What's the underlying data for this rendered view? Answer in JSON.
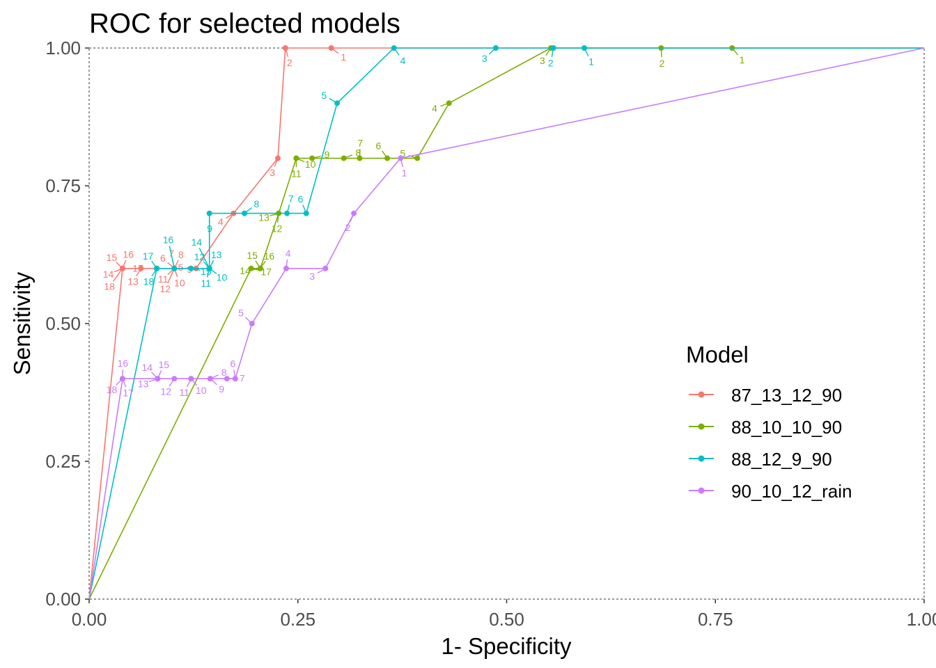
{
  "chart_data": {
    "type": "line",
    "title": "ROC for selected models",
    "xlabel": "1- Specificity",
    "ylabel": "Sensitivity",
    "xlim": [
      0,
      1
    ],
    "ylim": [
      0,
      1
    ],
    "x_ticks": [
      "0.00",
      "0.25",
      "0.50",
      "0.75",
      "1.00"
    ],
    "y_ticks": [
      "0.00",
      "0.25",
      "0.50",
      "0.75",
      "1.00"
    ],
    "grid": false,
    "legend": {
      "title": "Model",
      "position": "right"
    },
    "series": [
      {
        "name": "87_13_12_90",
        "color": "#F8766D",
        "points": [
          {
            "x": 1.0,
            "y": 1.0,
            "label": ""
          },
          {
            "x": 0.29,
            "y": 1.0,
            "label": "1"
          },
          {
            "x": 0.235,
            "y": 1.0,
            "label": "2"
          },
          {
            "x": 0.226,
            "y": 0.8,
            "label": "3"
          },
          {
            "x": 0.173,
            "y": 0.7,
            "label": "4"
          },
          {
            "x": 0.128,
            "y": 0.6,
            "label": "5"
          },
          {
            "x": 0.102,
            "y": 0.6,
            "label": "6"
          },
          {
            "x": 0.102,
            "y": 0.6,
            "label": "7"
          },
          {
            "x": 0.102,
            "y": 0.6,
            "label": "8"
          },
          {
            "x": 0.102,
            "y": 0.6,
            "label": "9"
          },
          {
            "x": 0.102,
            "y": 0.6,
            "label": "10"
          },
          {
            "x": 0.102,
            "y": 0.6,
            "label": "11"
          },
          {
            "x": 0.102,
            "y": 0.6,
            "label": "12"
          },
          {
            "x": 0.062,
            "y": 0.6,
            "label": "13"
          },
          {
            "x": 0.04,
            "y": 0.6,
            "label": "14"
          },
          {
            "x": 0.04,
            "y": 0.6,
            "label": "15"
          },
          {
            "x": 0.04,
            "y": 0.6,
            "label": "16"
          },
          {
            "x": 0.04,
            "y": 0.6,
            "label": "17"
          },
          {
            "x": 0.04,
            "y": 0.6,
            "label": "18"
          },
          {
            "x": 0.0,
            "y": 0.0,
            "label": ""
          }
        ]
      },
      {
        "name": "88_10_10_90",
        "color": "#7CAE00",
        "points": [
          {
            "x": 1.0,
            "y": 1.0,
            "label": ""
          },
          {
            "x": 0.77,
            "y": 1.0,
            "label": "1"
          },
          {
            "x": 0.685,
            "y": 1.0,
            "label": "2"
          },
          {
            "x": 0.553,
            "y": 1.0,
            "label": "3"
          },
          {
            "x": 0.431,
            "y": 0.9,
            "label": "4"
          },
          {
            "x": 0.393,
            "y": 0.8,
            "label": "5"
          },
          {
            "x": 0.357,
            "y": 0.8,
            "label": "6"
          },
          {
            "x": 0.324,
            "y": 0.8,
            "label": "7"
          },
          {
            "x": 0.305,
            "y": 0.8,
            "label": "8"
          },
          {
            "x": 0.267,
            "y": 0.8,
            "label": "9"
          },
          {
            "x": 0.248,
            "y": 0.8,
            "label": "10"
          },
          {
            "x": 0.248,
            "y": 0.8,
            "label": "11"
          },
          {
            "x": 0.227,
            "y": 0.7,
            "label": "12"
          },
          {
            "x": 0.227,
            "y": 0.7,
            "label": "13"
          },
          {
            "x": 0.205,
            "y": 0.6,
            "label": "14"
          },
          {
            "x": 0.205,
            "y": 0.6,
            "label": "15"
          },
          {
            "x": 0.205,
            "y": 0.6,
            "label": "16"
          },
          {
            "x": 0.194,
            "y": 0.6,
            "label": "17"
          },
          {
            "x": 0.0,
            "y": 0.0,
            "label": ""
          }
        ]
      },
      {
        "name": "88_12_9_90",
        "color": "#00BFC4",
        "points": [
          {
            "x": 1.0,
            "y": 1.0,
            "label": ""
          },
          {
            "x": 0.593,
            "y": 1.0,
            "label": "1"
          },
          {
            "x": 0.556,
            "y": 1.0,
            "label": "2"
          },
          {
            "x": 0.487,
            "y": 1.0,
            "label": "3"
          },
          {
            "x": 0.365,
            "y": 1.0,
            "label": "4"
          },
          {
            "x": 0.297,
            "y": 0.9,
            "label": "5"
          },
          {
            "x": 0.26,
            "y": 0.7,
            "label": "6"
          },
          {
            "x": 0.237,
            "y": 0.7,
            "label": "7"
          },
          {
            "x": 0.186,
            "y": 0.7,
            "label": "8"
          },
          {
            "x": 0.144,
            "y": 0.7,
            "label": "9"
          },
          {
            "x": 0.144,
            "y": 0.6,
            "label": "10"
          },
          {
            "x": 0.144,
            "y": 0.6,
            "label": "11"
          },
          {
            "x": 0.144,
            "y": 0.6,
            "label": "12"
          },
          {
            "x": 0.144,
            "y": 0.6,
            "label": "13"
          },
          {
            "x": 0.144,
            "y": 0.6,
            "label": "14"
          },
          {
            "x": 0.122,
            "y": 0.6,
            "label": "15"
          },
          {
            "x": 0.102,
            "y": 0.6,
            "label": "16"
          },
          {
            "x": 0.081,
            "y": 0.6,
            "label": "17"
          },
          {
            "x": 0.081,
            "y": 0.6,
            "label": "18"
          },
          {
            "x": 0.0,
            "y": 0.0,
            "label": ""
          }
        ]
      },
      {
        "name": "90_10_12_rain",
        "color": "#C77CFF",
        "points": [
          {
            "x": 1.0,
            "y": 1.0,
            "label": ""
          },
          {
            "x": 0.373,
            "y": 0.8,
            "label": "1"
          },
          {
            "x": 0.317,
            "y": 0.7,
            "label": "2"
          },
          {
            "x": 0.283,
            "y": 0.6,
            "label": "3"
          },
          {
            "x": 0.236,
            "y": 0.6,
            "label": "4"
          },
          {
            "x": 0.195,
            "y": 0.5,
            "label": "5"
          },
          {
            "x": 0.175,
            "y": 0.4,
            "label": "6"
          },
          {
            "x": 0.165,
            "y": 0.4,
            "label": "7"
          },
          {
            "x": 0.145,
            "y": 0.4,
            "label": "8"
          },
          {
            "x": 0.145,
            "y": 0.4,
            "label": "9"
          },
          {
            "x": 0.122,
            "y": 0.4,
            "label": "10"
          },
          {
            "x": 0.122,
            "y": 0.4,
            "label": "11"
          },
          {
            "x": 0.102,
            "y": 0.4,
            "label": "12"
          },
          {
            "x": 0.082,
            "y": 0.4,
            "label": "13"
          },
          {
            "x": 0.082,
            "y": 0.4,
            "label": "14"
          },
          {
            "x": 0.082,
            "y": 0.4,
            "label": "15"
          },
          {
            "x": 0.04,
            "y": 0.4,
            "label": "16"
          },
          {
            "x": 0.04,
            "y": 0.4,
            "label": "17"
          },
          {
            "x": 0.04,
            "y": 0.4,
            "label": "18"
          },
          {
            "x": 0.0,
            "y": 0.0,
            "label": ""
          }
        ]
      }
    ]
  }
}
